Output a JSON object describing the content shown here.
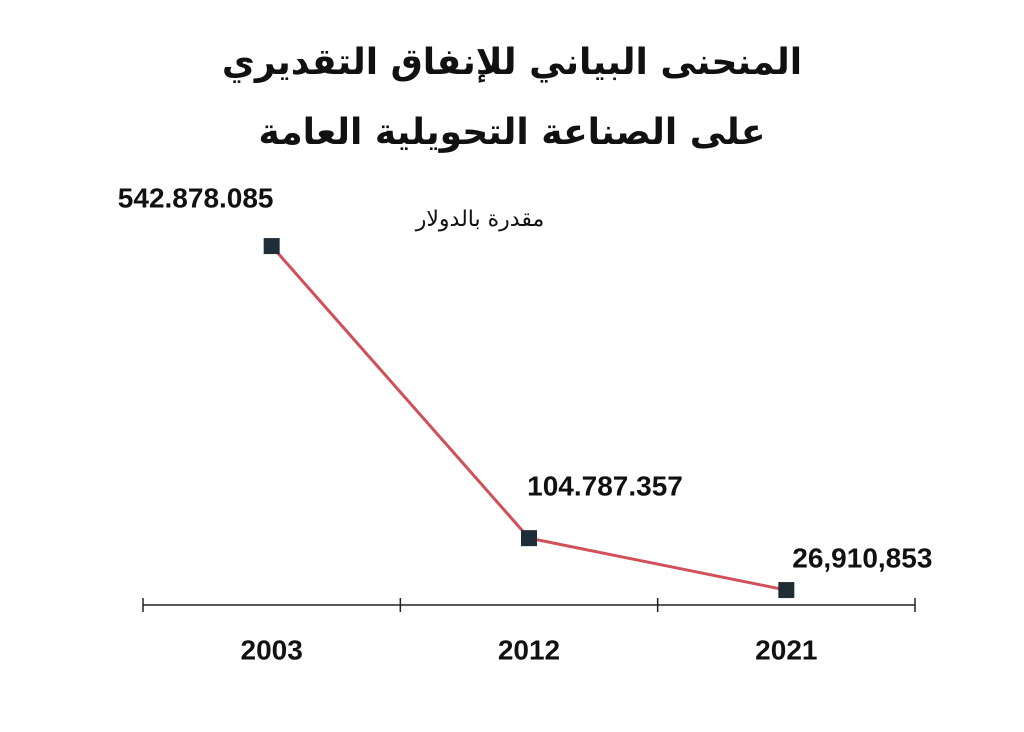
{
  "chart_data": {
    "type": "line",
    "title": "المنحنى البياني للإنفاق التقديري على الصناعة التحويلية العامة",
    "subtitle": "مقدرة بالدولار",
    "categories": [
      "2003",
      "2012",
      "2021"
    ],
    "values": [
      542878085,
      104787357,
      26910853
    ],
    "value_labels": [
      "542.878.085",
      "104.787.357",
      "26,910,853"
    ],
    "color": "#d0505a",
    "marker_color": "#1f2d36",
    "ylim": [
      0,
      600000000
    ]
  }
}
